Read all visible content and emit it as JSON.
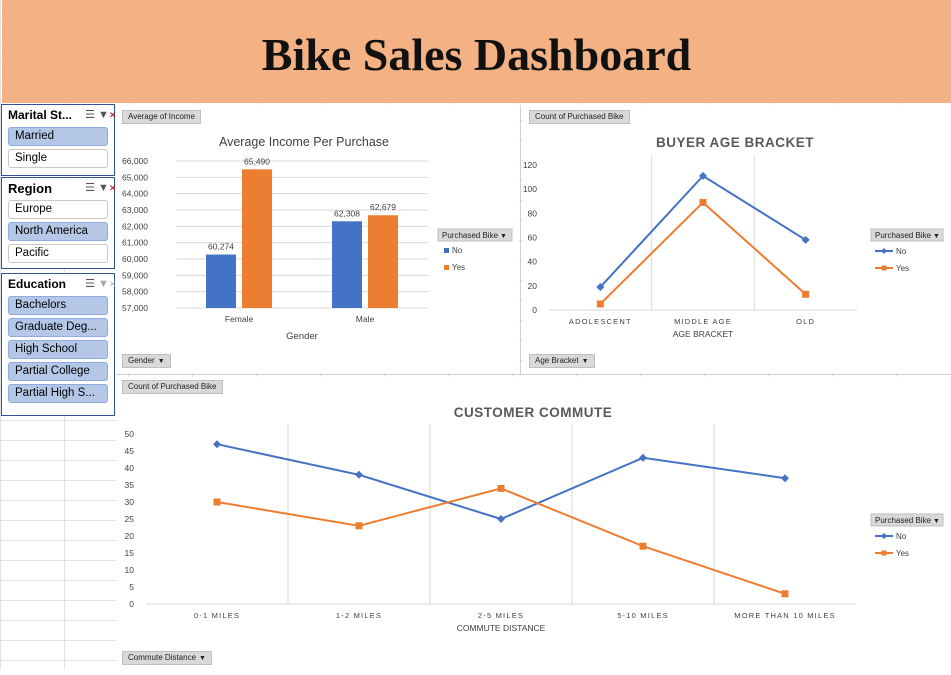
{
  "title": "Bike Sales Dashboard",
  "slicers": {
    "marital": {
      "title": "Marital St...",
      "items": [
        {
          "label": "Married",
          "selected": true
        },
        {
          "label": "Single",
          "selected": false
        }
      ]
    },
    "region": {
      "title": "Region",
      "items": [
        {
          "label": "Europe",
          "selected": false
        },
        {
          "label": "North America",
          "selected": true
        },
        {
          "label": "Pacific",
          "selected": false
        }
      ]
    },
    "education": {
      "title": "Education",
      "items": [
        {
          "label": "Bachelors",
          "selected": true
        },
        {
          "label": "Graduate Deg...",
          "selected": true
        },
        {
          "label": "High School",
          "selected": true
        },
        {
          "label": "Partial College",
          "selected": true
        },
        {
          "label": "Partial High S...",
          "selected": true
        }
      ]
    }
  },
  "pivot_buttons": {
    "avg_income": "Average of Income",
    "gender": "Gender",
    "count_purchased_1": "Count of Purchased Bike",
    "age_bracket": "Age Bracket",
    "count_purchased_2": "Count of Purchased Bike",
    "commute_distance": "Commute Distance"
  },
  "colors": {
    "no": "#4472c4",
    "yes": "#ed7d31"
  },
  "chart_data": [
    {
      "type": "bar",
      "title": "Average Income Per Purchase",
      "xlabel": "Gender",
      "ylabel": "",
      "categories": [
        "Female",
        "Male"
      ],
      "ylim": [
        57000,
        66000
      ],
      "yticks": [
        "57,000",
        "58,000",
        "59,000",
        "60,000",
        "61,000",
        "62,000",
        "63,000",
        "64,000",
        "65,000",
        "66,000"
      ],
      "legend_title": "Purchased Bike",
      "series": [
        {
          "name": "No",
          "values": [
            60274,
            62308
          ],
          "labels": [
            "60,274",
            "62,308"
          ]
        },
        {
          "name": "Yes",
          "values": [
            65490,
            62679
          ],
          "labels": [
            "65,490",
            "62,679"
          ]
        }
      ]
    },
    {
      "type": "line",
      "title": "BUYER AGE BRACKET",
      "xlabel": "AGE BRACKET",
      "ylabel": "",
      "categories": [
        "ADOLESCENT",
        "MIDDLE AGE",
        "OLD"
      ],
      "ylim": [
        0,
        120
      ],
      "yticks": [
        "0",
        "20",
        "40",
        "60",
        "80",
        "100",
        "120"
      ],
      "legend_title": "Purchased Bike",
      "series": [
        {
          "name": "No",
          "values": [
            19,
            111,
            58
          ]
        },
        {
          "name": "Yes",
          "values": [
            5,
            89,
            13
          ]
        }
      ]
    },
    {
      "type": "line",
      "title": "CUSTOMER COMMUTE",
      "xlabel": "COMMUTE DISTANCE",
      "ylabel": "",
      "categories": [
        "0-1 MILES",
        "1-2 MILES",
        "2-5 MILES",
        "5-10 MILES",
        "MORE THAN 10 MILES"
      ],
      "ylim": [
        0,
        50
      ],
      "yticks": [
        "0",
        "5",
        "10",
        "15",
        "20",
        "25",
        "30",
        "35",
        "40",
        "45",
        "50"
      ],
      "legend_title": "Purchased Bike",
      "series": [
        {
          "name": "No",
          "values": [
            47,
            38,
            25,
            43,
            37
          ]
        },
        {
          "name": "Yes",
          "values": [
            30,
            23,
            34,
            17,
            3
          ]
        }
      ]
    }
  ]
}
